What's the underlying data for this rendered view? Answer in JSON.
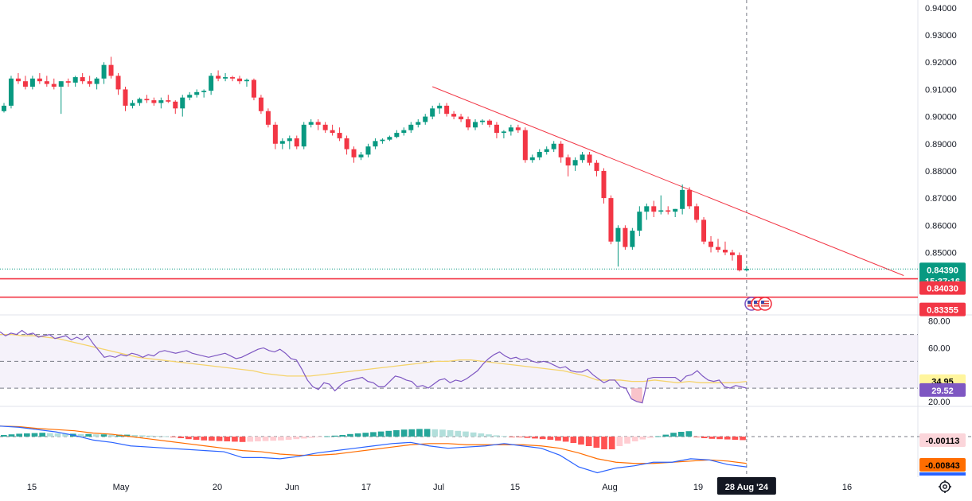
{
  "chart_data": [
    {
      "type": "candlestick",
      "x_tick_labels": [
        "15",
        "May",
        "20",
        "Jun",
        "17",
        "Jul",
        "15",
        "Aug",
        "19",
        "16"
      ],
      "crosshair_date_label": "28 Aug '24",
      "y_tick_labels": [
        "0.94000",
        "0.93000",
        "0.92000",
        "0.91000",
        "0.90000",
        "0.89000",
        "0.88000",
        "0.87000",
        "0.86000",
        "0.85000"
      ],
      "ylim": [
        0.8273,
        0.9429
      ],
      "candles": [
        [
          0.902,
          0.905,
          0.9015,
          0.904
        ],
        [
          0.904,
          0.915,
          0.903,
          0.914
        ],
        [
          0.914,
          0.916,
          0.912,
          0.913
        ],
        [
          0.913,
          0.915,
          0.91,
          0.911
        ],
        [
          0.911,
          0.915,
          0.91,
          0.914
        ],
        [
          0.914,
          0.916,
          0.912,
          0.913
        ],
        [
          0.913,
          0.915,
          0.911,
          0.912
        ],
        [
          0.912,
          0.914,
          0.91,
          0.911
        ],
        [
          0.911,
          0.913,
          0.901,
          0.913
        ],
        [
          0.913,
          0.914,
          0.911,
          0.9125
        ],
        [
          0.9125,
          0.915,
          0.911,
          0.9145
        ],
        [
          0.9145,
          0.916,
          0.912,
          0.913
        ],
        [
          0.913,
          0.915,
          0.911,
          0.912
        ],
        [
          0.912,
          0.9145,
          0.91,
          0.914
        ],
        [
          0.914,
          0.92,
          0.912,
          0.919
        ],
        [
          0.919,
          0.922,
          0.914,
          0.915
        ],
        [
          0.915,
          0.916,
          0.908,
          0.91
        ],
        [
          0.91,
          0.911,
          0.902,
          0.904
        ],
        [
          0.904,
          0.906,
          0.903,
          0.905
        ],
        [
          0.905,
          0.907,
          0.904,
          0.9065
        ],
        [
          0.9065,
          0.908,
          0.905,
          0.906
        ],
        [
          0.906,
          0.907,
          0.904,
          0.905
        ],
        [
          0.905,
          0.907,
          0.903,
          0.906
        ],
        [
          0.906,
          0.908,
          0.905,
          0.9055
        ],
        [
          0.9055,
          0.906,
          0.901,
          0.903
        ],
        [
          0.903,
          0.908,
          0.9,
          0.907
        ],
        [
          0.907,
          0.909,
          0.906,
          0.908
        ],
        [
          0.908,
          0.91,
          0.907,
          0.909
        ],
        [
          0.909,
          0.91,
          0.907,
          0.9095
        ],
        [
          0.9095,
          0.916,
          0.908,
          0.915
        ],
        [
          0.915,
          0.917,
          0.913,
          0.914
        ],
        [
          0.914,
          0.916,
          0.913,
          0.9145
        ],
        [
          0.9145,
          0.915,
          0.913,
          0.914
        ],
        [
          0.914,
          0.915,
          0.912,
          0.913
        ],
        [
          0.913,
          0.914,
          0.911,
          0.9135
        ],
        [
          0.9135,
          0.914,
          0.906,
          0.907
        ],
        [
          0.907,
          0.908,
          0.901,
          0.902
        ],
        [
          0.902,
          0.903,
          0.896,
          0.897
        ],
        [
          0.897,
          0.898,
          0.888,
          0.89
        ],
        [
          0.89,
          0.892,
          0.888,
          0.891
        ],
        [
          0.891,
          0.893,
          0.888,
          0.892
        ],
        [
          0.892,
          0.893,
          0.888,
          0.889
        ],
        [
          0.889,
          0.898,
          0.888,
          0.897
        ],
        [
          0.897,
          0.899,
          0.896,
          0.898
        ],
        [
          0.898,
          0.899,
          0.895,
          0.897
        ],
        [
          0.897,
          0.898,
          0.894,
          0.895
        ],
        [
          0.895,
          0.897,
          0.893,
          0.894
        ],
        [
          0.894,
          0.896,
          0.891,
          0.892
        ],
        [
          0.892,
          0.893,
          0.886,
          0.888
        ],
        [
          0.888,
          0.889,
          0.883,
          0.885
        ],
        [
          0.885,
          0.887,
          0.884,
          0.886
        ],
        [
          0.886,
          0.89,
          0.885,
          0.889
        ],
        [
          0.889,
          0.892,
          0.888,
          0.891
        ],
        [
          0.891,
          0.892,
          0.89,
          0.8915
        ],
        [
          0.8915,
          0.893,
          0.891,
          0.8925
        ],
        [
          0.8925,
          0.895,
          0.892,
          0.894
        ],
        [
          0.894,
          0.896,
          0.893,
          0.895
        ],
        [
          0.895,
          0.898,
          0.894,
          0.897
        ],
        [
          0.897,
          0.899,
          0.896,
          0.898
        ],
        [
          0.898,
          0.901,
          0.897,
          0.9
        ],
        [
          0.9,
          0.904,
          0.899,
          0.903
        ],
        [
          0.903,
          0.905,
          0.901,
          0.904
        ],
        [
          0.904,
          0.905,
          0.9,
          0.901
        ],
        [
          0.901,
          0.902,
          0.899,
          0.9
        ],
        [
          0.9,
          0.901,
          0.898,
          0.899
        ],
        [
          0.899,
          0.9,
          0.895,
          0.896
        ],
        [
          0.896,
          0.899,
          0.895,
          0.898
        ],
        [
          0.898,
          0.899,
          0.897,
          0.8985
        ],
        [
          0.8985,
          0.899,
          0.896,
          0.897
        ],
        [
          0.897,
          0.898,
          0.892,
          0.894
        ],
        [
          0.894,
          0.895,
          0.892,
          0.8945
        ],
        [
          0.8945,
          0.897,
          0.893,
          0.896
        ],
        [
          0.896,
          0.897,
          0.894,
          0.895
        ],
        [
          0.895,
          0.896,
          0.883,
          0.884
        ],
        [
          0.884,
          0.886,
          0.883,
          0.885
        ],
        [
          0.885,
          0.888,
          0.884,
          0.887
        ],
        [
          0.887,
          0.889,
          0.886,
          0.888
        ],
        [
          0.888,
          0.891,
          0.887,
          0.89
        ],
        [
          0.89,
          0.891,
          0.883,
          0.885
        ],
        [
          0.885,
          0.886,
          0.878,
          0.882
        ],
        [
          0.882,
          0.885,
          0.88,
          0.884
        ],
        [
          0.884,
          0.887,
          0.883,
          0.886
        ],
        [
          0.886,
          0.887,
          0.882,
          0.883
        ],
        [
          0.883,
          0.884,
          0.878,
          0.88
        ],
        [
          0.88,
          0.881,
          0.868,
          0.87
        ],
        [
          0.87,
          0.871,
          0.853,
          0.854
        ],
        [
          0.854,
          0.86,
          0.8448,
          0.859
        ],
        [
          0.859,
          0.86,
          0.851,
          0.852
        ],
        [
          0.852,
          0.859,
          0.851,
          0.858
        ],
        [
          0.858,
          0.867,
          0.856,
          0.865
        ],
        [
          0.865,
          0.868,
          0.862,
          0.867
        ],
        [
          0.867,
          0.869,
          0.863,
          0.865
        ],
        [
          0.865,
          0.871,
          0.864,
          0.8655
        ],
        [
          0.8655,
          0.867,
          0.864,
          0.865
        ],
        [
          0.865,
          0.866,
          0.863,
          0.866
        ],
        [
          0.866,
          0.875,
          0.864,
          0.873
        ],
        [
          0.873,
          0.874,
          0.866,
          0.867
        ],
        [
          0.867,
          0.868,
          0.861,
          0.862
        ],
        [
          0.862,
          0.863,
          0.853,
          0.854
        ],
        [
          0.854,
          0.856,
          0.85,
          0.852
        ],
        [
          0.852,
          0.855,
          0.85,
          0.851
        ],
        [
          0.851,
          0.854,
          0.849,
          0.85
        ],
        [
          0.85,
          0.851,
          0.847,
          0.849
        ],
        [
          0.849,
          0.85,
          0.843,
          0.8434
        ],
        [
          0.8434,
          0.845,
          0.843,
          0.8439
        ]
      ],
      "trendline": {
        "from": {
          "candle_index": 60,
          "price": 0.911
        },
        "to": {
          "candle_index": 126,
          "price": 0.8415
        }
      },
      "horizontal_levels": [
        0.8403,
        0.83355
      ],
      "price_labels": {
        "last": {
          "value": "0.84390",
          "countdown": "15:37:16",
          "color": "#089981"
        },
        "level_1": {
          "value": "0.84030",
          "color": "#f23645"
        },
        "level_2": {
          "value": "0.83355",
          "color": "#f23645"
        }
      },
      "colors": {
        "up": "#089981",
        "down": "#f23645",
        "trendline": "#f23645"
      }
    },
    {
      "type": "line",
      "panel": "RSI",
      "y_tick_labels": [
        "80.00",
        "60.00",
        "20.00"
      ],
      "ylim": [
        17,
        84
      ],
      "band": [
        30,
        70
      ],
      "midline": 50,
      "rsi": [
        72,
        69,
        71,
        70,
        73,
        70,
        71,
        68,
        69,
        70,
        67,
        68,
        69,
        66,
        68,
        66,
        69,
        63,
        58,
        53,
        54,
        53,
        55,
        54,
        56,
        55,
        53,
        55,
        54,
        57,
        58,
        57,
        56,
        57,
        58,
        56,
        55,
        54,
        53,
        54,
        55,
        56,
        54,
        52,
        53,
        55,
        57,
        59,
        60,
        58,
        57,
        59,
        56,
        52,
        51,
        44,
        36,
        31,
        29,
        34,
        33,
        28,
        32,
        35,
        36,
        37,
        38,
        35,
        34,
        31,
        31,
        35,
        39,
        38,
        36,
        35,
        31,
        32,
        30,
        33,
        36,
        37,
        34,
        36,
        35,
        37,
        40,
        43,
        48,
        52,
        55,
        57,
        54,
        52,
        53,
        51,
        52,
        50,
        49,
        50,
        49,
        47,
        45,
        46,
        43,
        42,
        42,
        44,
        40,
        37,
        34,
        36,
        36,
        31,
        30,
        22,
        20,
        19,
        37,
        38,
        38,
        38,
        38,
        38,
        35,
        39,
        40,
        43,
        39,
        36,
        35,
        36,
        31,
        30,
        32,
        31,
        30
      ],
      "rsi_ma": [
        70,
        70,
        69,
        69,
        68,
        67,
        65,
        63,
        61,
        59,
        57,
        55,
        53,
        52,
        51,
        50,
        49,
        48,
        47,
        46,
        45,
        44,
        43,
        41,
        40,
        39,
        39,
        39,
        40,
        41,
        42,
        43,
        44,
        45,
        46,
        47,
        48,
        49,
        50,
        50,
        51,
        51,
        50,
        49,
        48,
        47,
        46,
        45,
        44,
        43,
        41,
        39,
        36,
        36,
        36,
        35,
        35,
        36,
        35,
        34,
        35,
        34,
        34,
        34,
        34,
        35
      ],
      "badges": [
        {
          "value": "34.95",
          "color": "#fff59d",
          "text_color": "#000000"
        },
        {
          "value": "29.52",
          "color": "#7e57c2",
          "text_color": "#ffffff"
        }
      ],
      "colors": {
        "rsi": "#7e57c2",
        "ma": "#f5d36b",
        "band_fill": "#7e57c2",
        "oversold_fill": "#f7b4bd"
      }
    },
    {
      "type": "bar",
      "panel": "MACD",
      "histogram": [
        0.0005,
        0.0007,
        0.0009,
        0.001,
        0.0011,
        0.0012,
        0.0011,
        0.001,
        0.0009,
        0.0009,
        0.0008,
        0.0008,
        0.0007,
        0.0007,
        0.0006,
        0.0006,
        0.0006,
        0.0005,
        0.0004,
        0.0003,
        0.0002,
        0.0001,
        -0.0002,
        -0.0005,
        -0.0008,
        -0.001,
        -0.0012,
        -0.0013,
        -0.0014,
        -0.0015,
        -0.0016,
        -0.0017,
        -0.0016,
        -0.0015,
        -0.0014,
        -0.0013,
        -0.0012,
        -0.001,
        -0.0008,
        -0.0006,
        -0.0004,
        -0.0002,
        0.0001,
        0.0003,
        0.0005,
        0.0008,
        0.001,
        0.0012,
        0.0014,
        0.0016,
        0.0018,
        0.002,
        0.0022,
        0.0023,
        0.0024,
        0.0024,
        0.0023,
        0.0022,
        0.002,
        0.0018,
        0.0016,
        0.0013,
        0.001,
        0.0007,
        0.0004,
        0.0002,
        -0.0001,
        -0.0002,
        -0.0004,
        -0.0006,
        -0.0008,
        -0.001,
        -0.0013,
        -0.0016,
        -0.002,
        -0.0025,
        -0.003,
        -0.0035,
        -0.004,
        -0.004,
        -0.003,
        -0.0022,
        -0.0015,
        -0.0009,
        -0.0004,
        0.0001,
        0.0006,
        0.0012,
        0.0015,
        0.0017,
        -0.0002,
        -0.0005,
        -0.0007,
        -0.0008,
        -0.0009,
        -0.001,
        -0.0011
      ],
      "macd_line": [
        0.009,
        0.008,
        0.006,
        0.004,
        0.001,
        -0.003,
        -0.005,
        -0.008,
        -0.009,
        -0.01,
        -0.011,
        -0.012,
        -0.013,
        -0.018,
        -0.018,
        -0.019,
        -0.017,
        -0.014,
        -0.012,
        -0.01,
        -0.008,
        -0.006,
        -0.005,
        -0.008,
        -0.01,
        -0.009,
        -0.008,
        -0.006,
        -0.008,
        -0.01,
        -0.016,
        -0.026,
        -0.031,
        -0.027,
        -0.025,
        -0.022,
        -0.022,
        -0.019,
        -0.02,
        -0.024,
        -0.026
      ],
      "signal_line": [
        0.009,
        0.0085,
        0.007,
        0.006,
        0.005,
        0.003,
        0.002,
        0.0,
        -0.002,
        -0.004,
        -0.006,
        -0.008,
        -0.01,
        -0.012,
        -0.013,
        -0.015,
        -0.016,
        -0.016,
        -0.015,
        -0.013,
        -0.011,
        -0.009,
        -0.007,
        -0.006,
        -0.006,
        -0.007,
        -0.007,
        -0.007,
        -0.007,
        -0.008,
        -0.01,
        -0.014,
        -0.019,
        -0.022,
        -0.023,
        -0.023,
        -0.022,
        -0.021,
        -0.02,
        -0.021,
        -0.023
      ],
      "badges": [
        {
          "value": "-0.00113",
          "color": "#fbd5da",
          "text_color": "#000000"
        },
        {
          "value": "-0.00843",
          "color": "#ff6d00",
          "text_color": "#000000"
        }
      ],
      "colors": {
        "macd": "#2962ff",
        "signal": "#ff6d00",
        "hist_up_strong": "#26a69a",
        "hist_up_weak": "#b2dfdb",
        "hist_down_strong": "#ff5252",
        "hist_down_weak": "#ffcdd2"
      }
    }
  ],
  "settings": {
    "icon": "gear-icon"
  }
}
